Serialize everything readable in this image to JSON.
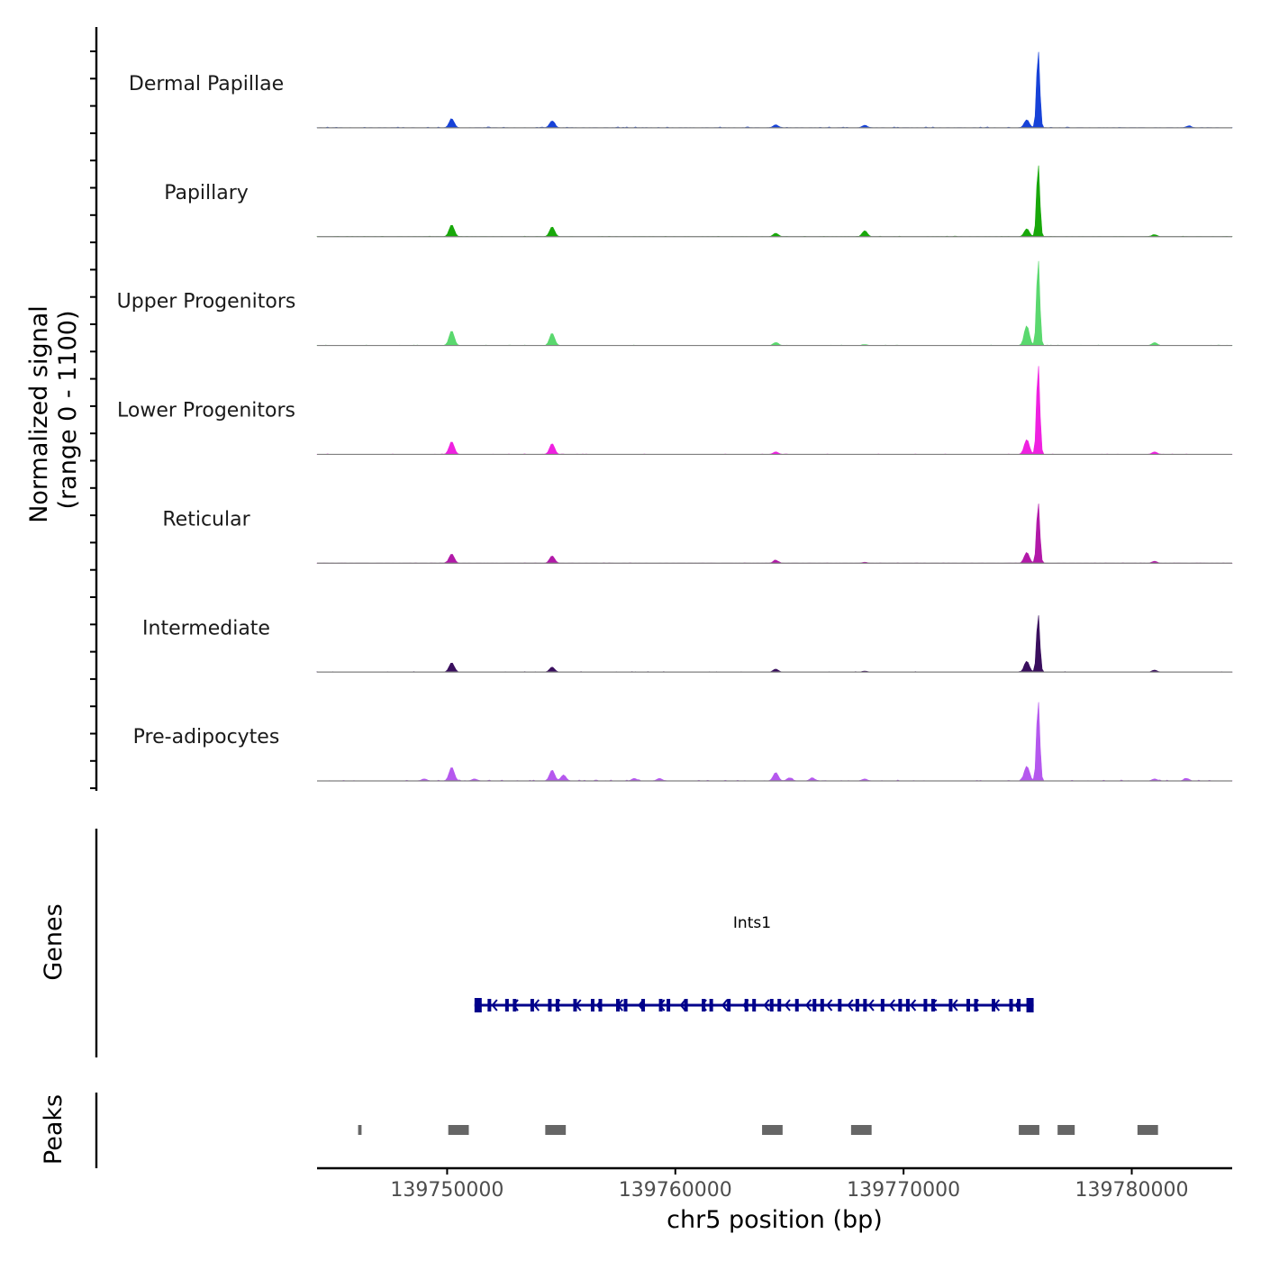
{
  "chart_data": {
    "type": "area",
    "title": "",
    "ylabel_lines": [
      "Normalized signal",
      "(range 0 - 1100)"
    ],
    "y_range": [
      0,
      1100
    ],
    "xlabel": "chr5 position (bp)",
    "x_range": [
      139744300,
      139784400
    ],
    "x_ticks": [
      139750000,
      139760000,
      139770000,
      139780000
    ],
    "x_tick_labels": [
      "139750000",
      "139760000",
      "139770000",
      "139780000"
    ],
    "tracks": [
      {
        "name": "Dermal Papillae",
        "color": "#1742d8",
        "peaks": [
          [
            139750200,
            90
          ],
          [
            139754600,
            70
          ],
          [
            139764400,
            30
          ],
          [
            139768300,
            25
          ],
          [
            139775400,
            80
          ],
          [
            139775900,
            790
          ],
          [
            139782500,
            18
          ]
        ],
        "noise": 6
      },
      {
        "name": "Papillary",
        "color": "#18a80a",
        "peaks": [
          [
            139750200,
            120
          ],
          [
            139754600,
            100
          ],
          [
            139764400,
            35
          ],
          [
            139768300,
            60
          ],
          [
            139775400,
            80
          ],
          [
            139775900,
            740
          ],
          [
            139781000,
            20
          ]
        ],
        "noise": 3
      },
      {
        "name": "Upper Progenitors",
        "color": "#5ad86e",
        "peaks": [
          [
            139750200,
            150
          ],
          [
            139754600,
            125
          ],
          [
            139764400,
            30
          ],
          [
            139768300,
            10
          ],
          [
            139775400,
            200
          ],
          [
            139775900,
            880
          ],
          [
            139781000,
            30
          ]
        ],
        "noise": 3
      },
      {
        "name": "Lower Progenitors",
        "color": "#ef21e0",
        "peaks": [
          [
            139750200,
            130
          ],
          [
            139754600,
            110
          ],
          [
            139764400,
            25
          ],
          [
            139775400,
            150
          ],
          [
            139775900,
            920
          ],
          [
            139781000,
            25
          ]
        ],
        "noise": 3
      },
      {
        "name": "Reticular",
        "color": "#b219a8",
        "peaks": [
          [
            139750200,
            95
          ],
          [
            139754600,
            75
          ],
          [
            139764400,
            30
          ],
          [
            139768300,
            10
          ],
          [
            139775400,
            110
          ],
          [
            139775900,
            620
          ],
          [
            139781000,
            20
          ]
        ],
        "noise": 3
      },
      {
        "name": "Intermediate",
        "color": "#3a0f5e",
        "peaks": [
          [
            139750200,
            95
          ],
          [
            139754600,
            50
          ],
          [
            139764400,
            30
          ],
          [
            139768300,
            10
          ],
          [
            139775400,
            110
          ],
          [
            139775900,
            590
          ],
          [
            139781000,
            20
          ]
        ],
        "noise": 3
      },
      {
        "name": "Pre-adipocytes",
        "color": "#b558ee",
        "peaks": [
          [
            139749000,
            20
          ],
          [
            139750200,
            140
          ],
          [
            139751200,
            20
          ],
          [
            139754600,
            110
          ],
          [
            139755100,
            60
          ],
          [
            139758200,
            25
          ],
          [
            139759300,
            25
          ],
          [
            139764400,
            85
          ],
          [
            139765000,
            30
          ],
          [
            139766000,
            30
          ],
          [
            139768300,
            20
          ],
          [
            139775400,
            150
          ],
          [
            139775900,
            820
          ],
          [
            139781000,
            20
          ],
          [
            139782400,
            25
          ]
        ],
        "noise": 6
      }
    ],
    "genes": {
      "label": "Genes",
      "gene_name": "Ints1",
      "color": "#00008b",
      "start": 139751200,
      "end": 139775700,
      "strand": "-"
    },
    "peaks_track": {
      "label": "Peaks",
      "color": "#666666",
      "regions": [
        [
          139746100,
          139746250
        ],
        [
          139750050,
          139750950
        ],
        [
          139754300,
          139755200
        ],
        [
          139763800,
          139764700
        ],
        [
          139767700,
          139768600
        ],
        [
          139775050,
          139775950
        ],
        [
          139776750,
          139777500
        ],
        [
          139780250,
          139781150
        ]
      ]
    }
  }
}
